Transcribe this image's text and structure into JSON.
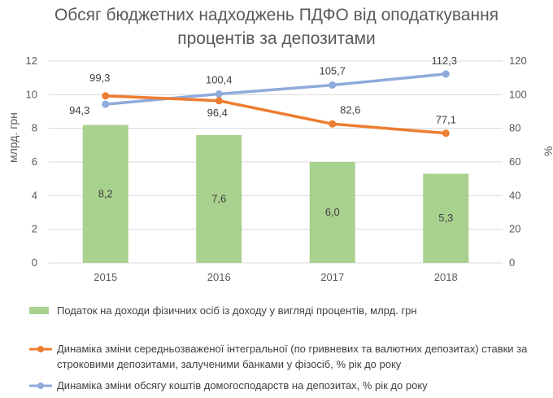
{
  "chart_data": {
    "type": "bar+line",
    "title_line1": "Обсяг бюджетних надходжень ПДФО від оподаткування",
    "title_line2": "процентів за депозитами",
    "categories": [
      "2015",
      "2016",
      "2017",
      "2018"
    ],
    "y_left_label": "млрд. грн",
    "y_right_label": "%",
    "y_left_ticks": [
      "0",
      "2",
      "4",
      "6",
      "8",
      "10",
      "12"
    ],
    "y_right_ticks": [
      "0",
      "20",
      "40",
      "60",
      "80",
      "100",
      "120"
    ],
    "y_left_range": [
      0,
      12
    ],
    "y_right_range": [
      0,
      120
    ],
    "bars": {
      "name": "Податок на доходи фізичних осіб із доходу у вигляді процентів, млрд. грн",
      "values": [
        8.2,
        7.6,
        6.0,
        5.3
      ],
      "labels": [
        "8,2",
        "7,6",
        "6,0",
        "5,3"
      ],
      "color": "#a9d18e"
    },
    "line_rate": {
      "name_line1": "Динаміка зміни середньозваженої інтегральної (по гривневих та валютних депозитах) ставки за",
      "name_line2": "строковими депозитами, залученими банками у фізосіб, % рік до року",
      "values": [
        99.3,
        96.4,
        82.6,
        77.1
      ],
      "labels": [
        "99,3",
        "96,4",
        "82,6",
        "77,1"
      ],
      "color": "#ed7d31"
    },
    "line_deposits": {
      "name": "Динаміка зміни обсягу коштів домогосподарств на депозитах, % рік до року",
      "values": [
        94.3,
        100.4,
        105.7,
        112.3
      ],
      "labels": [
        "94,3",
        "100,4",
        "105,7",
        "112,3"
      ],
      "color": "#8faadc"
    },
    "grid": true,
    "legend_position": "bottom"
  }
}
